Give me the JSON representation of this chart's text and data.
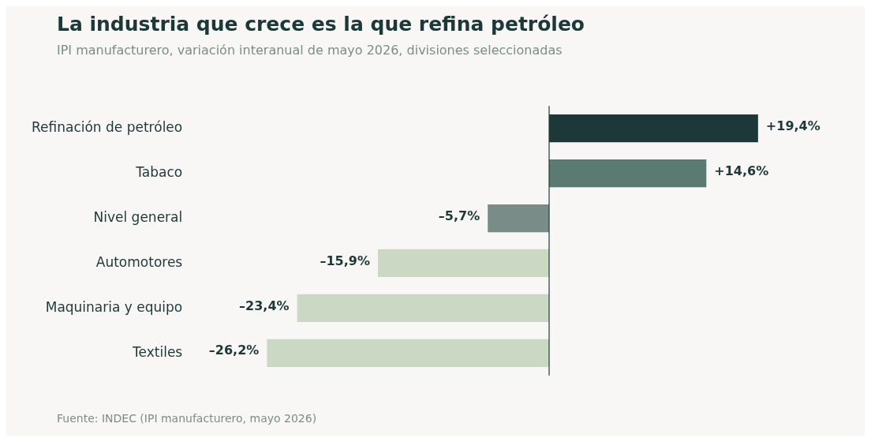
{
  "chart_data": {
    "type": "bar",
    "orientation": "horizontal",
    "title": "La industria que crece es la que refina petróleo",
    "subtitle": "IPI manufacturero, variación interanual de mayo 2026, divisiones seleccionadas",
    "categories": [
      "Refinación de petróleo",
      "Tabaco",
      "Nivel general",
      "Automotores",
      "Maquinaria y equipo",
      "Textiles"
    ],
    "values": [
      19.4,
      14.6,
      -5.7,
      -15.9,
      -23.4,
      -26.2
    ],
    "colors": [
      "#1c3839",
      "#5a7a72",
      "#7a8c87",
      "#cbd9c4",
      "#cbd9c4",
      "#cbd9c4"
    ],
    "value_labels": [
      "+19,4%",
      "+14,6%",
      "–5,7%",
      "–15,9%",
      "–23,4%",
      "–26,2%"
    ],
    "legend": false,
    "annotations": [
      "Fuente: INDEC (IPI manufacturero, mayo 2026)"
    ]
  }
}
